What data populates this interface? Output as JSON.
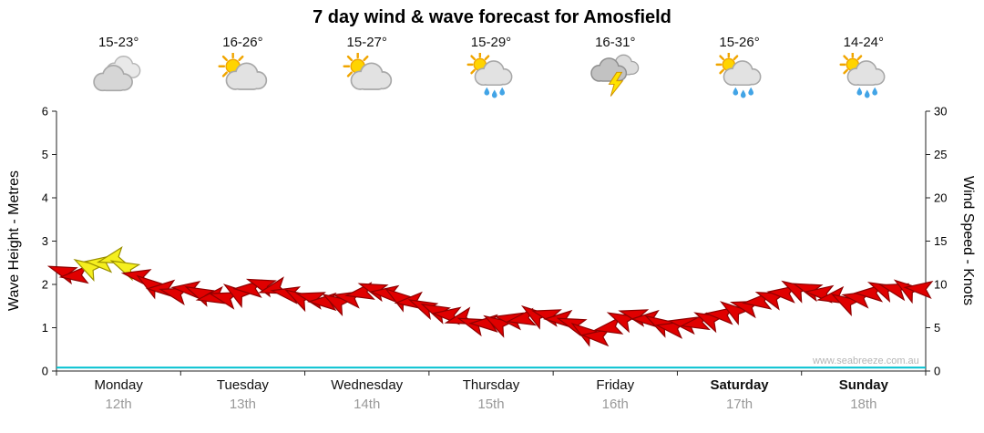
{
  "title": "7 day wind & wave forecast for Amosfield",
  "watermark": "www.seabreeze.com.au",
  "days": [
    {
      "name": "Monday",
      "date": "12th",
      "temp": "15-23°",
      "icon": "cloudy",
      "weekend": false
    },
    {
      "name": "Tuesday",
      "date": "13th",
      "temp": "16-26°",
      "icon": "partly-cloudy",
      "weekend": false
    },
    {
      "name": "Wednesday",
      "date": "14th",
      "temp": "15-27°",
      "icon": "partly-cloudy",
      "weekend": false
    },
    {
      "name": "Thursday",
      "date": "15th",
      "temp": "15-29°",
      "icon": "partly-cloudy-showers",
      "weekend": false
    },
    {
      "name": "Friday",
      "date": "16th",
      "temp": "16-31°",
      "icon": "thunderstorm",
      "weekend": false
    },
    {
      "name": "Saturday",
      "date": "17th",
      "temp": "15-26°",
      "icon": "partly-cloudy-showers",
      "weekend": true
    },
    {
      "name": "Sunday",
      "date": "18th",
      "temp": "14-24°",
      "icon": "partly-cloudy-showers",
      "weekend": true
    }
  ],
  "chart_data": {
    "type": "line",
    "subtype": "wind-arrow-forecast",
    "title": "7 day wind & wave forecast for Amosfield",
    "ylabel_left": "Wave Height - Metres",
    "ylabel_right": "Wind Speed - Knots",
    "ylim_left": [
      0,
      6
    ],
    "ylim_right": [
      0,
      30
    ],
    "yticks_left": [
      0,
      1,
      2,
      3,
      4,
      5,
      6
    ],
    "yticks_right": [
      0,
      5,
      10,
      15,
      20,
      25,
      30
    ],
    "x_categories": [
      "Monday",
      "Tuesday",
      "Wednesday",
      "Thursday",
      "Friday",
      "Saturday",
      "Sunday"
    ],
    "points_per_day": 10,
    "wind_knots": [
      11.5,
      11,
      12,
      12.5,
      13,
      12,
      11,
      10,
      9.5,
      9,
      9.5,
      9,
      8.5,
      8.5,
      9,
      9.5,
      10,
      9.5,
      9,
      8.5,
      8.5,
      8,
      8,
      8.5,
      9,
      9.5,
      9,
      8.5,
      8,
      7.5,
      7,
      6.5,
      6,
      5.5,
      5.5,
      5.5,
      6,
      6,
      6.5,
      6.5,
      6,
      5.5,
      4.5,
      4,
      5,
      6,
      6.5,
      6,
      5.5,
      5,
      5.5,
      5.5,
      6,
      6.5,
      7,
      7.5,
      8,
      8.5,
      9,
      9.5,
      9.5,
      9,
      8.5,
      8,
      8.5,
      9,
      9.5,
      9.5,
      9.5,
      9.5
    ],
    "wind_color": [
      "r",
      "r",
      "y",
      "y",
      "y",
      "y",
      "r",
      "r",
      "r",
      "r",
      "r",
      "r",
      "r",
      "r",
      "r",
      "r",
      "r",
      "r",
      "r",
      "r",
      "r",
      "r",
      "r",
      "r",
      "r",
      "r",
      "r",
      "r",
      "r",
      "r",
      "r",
      "r",
      "r",
      "r",
      "r",
      "r",
      "r",
      "r",
      "r",
      "r",
      "r",
      "r",
      "r",
      "r",
      "r",
      "r",
      "r",
      "r",
      "r",
      "r",
      "r",
      "r",
      "r",
      "r",
      "r",
      "r",
      "r",
      "r",
      "r",
      "r",
      "r",
      "r",
      "r",
      "r",
      "r",
      "r",
      "r",
      "r",
      "r",
      "r"
    ],
    "wind_dir_deg": [
      200,
      175,
      210,
      185,
      165,
      205,
      190,
      215,
      180,
      195,
      185,
      205,
      170,
      195,
      215,
      180,
      200,
      165,
      190,
      210,
      195,
      180,
      210,
      190,
      170,
      200,
      185,
      215,
      175,
      205,
      205,
      185,
      165,
      200,
      180,
      210,
      190,
      170,
      215,
      195,
      180,
      200,
      215,
      185,
      170,
      205,
      195,
      180,
      210,
      190,
      190,
      170,
      205,
      185,
      215,
      195,
      175,
      200,
      185,
      210,
      200,
      185,
      170,
      210,
      190,
      180,
      205,
      195,
      215,
      185
    ],
    "wave_height_m_constant": 0.08,
    "colors": {
      "wind_red": "#e00000",
      "wind_red_outline": "#8f0000",
      "wind_yellow": "#f5ef1e",
      "wind_yellow_outline": "#9a8f00",
      "wave": "#00c0d0",
      "axis": "#222222"
    }
  }
}
